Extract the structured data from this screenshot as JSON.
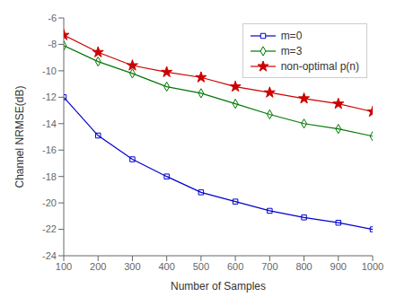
{
  "chart_data": {
    "type": "line",
    "x": [
      100,
      200,
      300,
      400,
      500,
      600,
      700,
      800,
      900,
      1000
    ],
    "series": [
      {
        "name": "m=0",
        "color": "#0000cc",
        "marker": "square",
        "values": [
          -12.0,
          -14.9,
          -16.7,
          -18.0,
          -19.2,
          -19.9,
          -20.6,
          -21.1,
          -21.5,
          -22.0
        ]
      },
      {
        "name": "m=3",
        "color": "#007700",
        "marker": "diamond",
        "values": [
          -8.1,
          -9.3,
          -10.2,
          -11.2,
          -11.7,
          -12.5,
          -13.3,
          -14.0,
          -14.4,
          -14.95
        ]
      },
      {
        "name": "non-optimal p(n)",
        "color": "#cc0000",
        "marker": "star",
        "values": [
          -7.3,
          -8.6,
          -9.6,
          -10.1,
          -10.5,
          -11.2,
          -11.65,
          -12.1,
          -12.5,
          -13.1
        ]
      }
    ],
    "xlabel": "Number of Samples",
    "ylabel": "Channel NRMSE(dB)",
    "xlim": [
      100,
      1000
    ],
    "xticks": [
      100,
      200,
      300,
      400,
      500,
      600,
      700,
      800,
      900,
      1000
    ],
    "ylim": [
      -24,
      -6
    ],
    "yticks": [
      -24,
      -22,
      -20,
      -18,
      -16,
      -14,
      -12,
      -10,
      -8,
      -6
    ],
    "grid": false,
    "legend": "upper right"
  }
}
